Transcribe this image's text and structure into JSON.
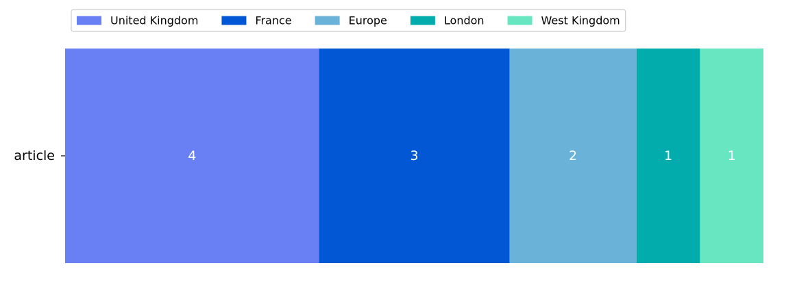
{
  "chart_data": {
    "type": "bar",
    "orientation": "horizontal",
    "stacked": true,
    "categories": [
      "article"
    ],
    "series": [
      {
        "name": "United Kingdom",
        "values": [
          4
        ],
        "color": "#6880f3"
      },
      {
        "name": "France",
        "values": [
          3
        ],
        "color": "#0157d4"
      },
      {
        "name": "Europe",
        "values": [
          2
        ],
        "color": "#6ab2d8"
      },
      {
        "name": "London",
        "values": [
          1
        ],
        "color": "#03acac"
      },
      {
        "name": "West Kingdom",
        "values": [
          1
        ],
        "color": "#68e6c2"
      }
    ],
    "xlim": [
      0,
      11
    ],
    "grid": false,
    "legend_position": "top",
    "data_labels_visible": true
  }
}
